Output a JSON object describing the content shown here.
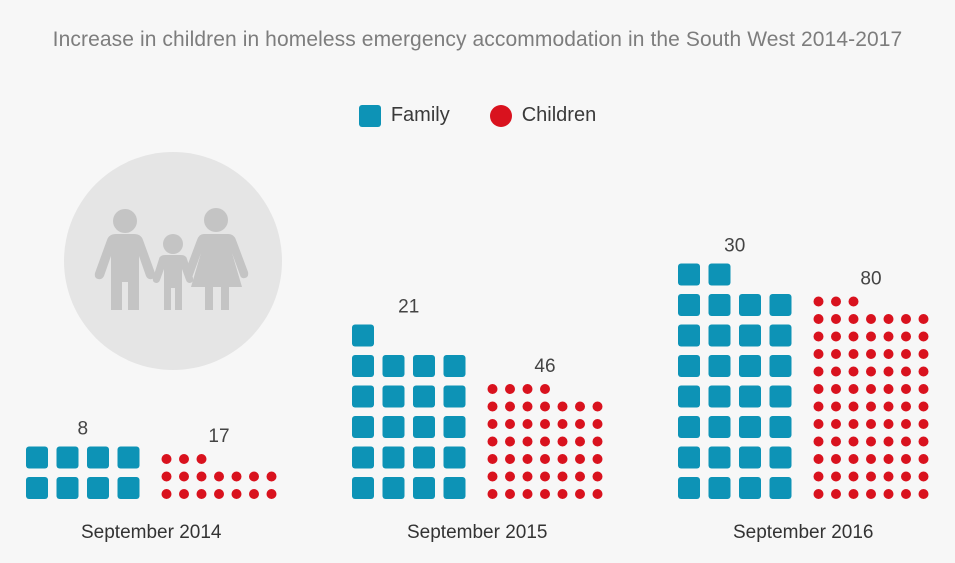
{
  "chart_data": {
    "type": "pictogram",
    "title": "Increase in children in homeless emergency accommodation in the South West 2014-2017",
    "categories": [
      "September 2014",
      "September 2015",
      "September 2016"
    ],
    "series": [
      {
        "name": "Family",
        "values": [
          8,
          21,
          30
        ],
        "color": "#0d93b6",
        "marker": "square"
      },
      {
        "name": "Children",
        "values": [
          17,
          46,
          80
        ],
        "color": "#d9121e",
        "marker": "dot"
      }
    ],
    "legend_position": "top-center",
    "grid": false
  },
  "icons": {
    "illustration": "family-icon"
  }
}
